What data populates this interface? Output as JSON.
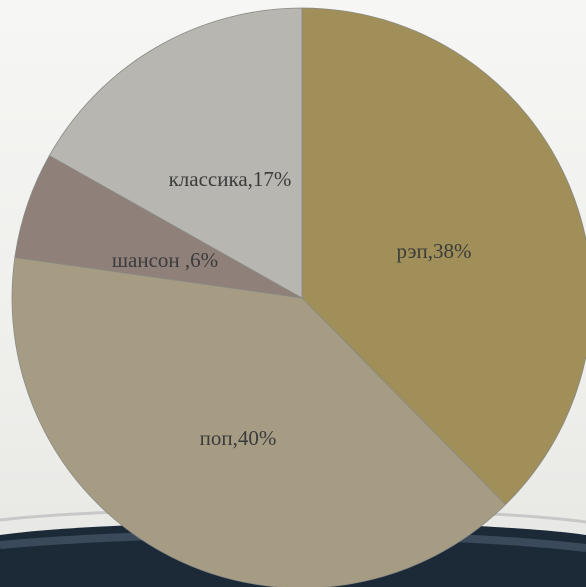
{
  "chart_data": {
    "type": "pie",
    "slices": [
      {
        "label": "рэп,38%",
        "value": 38,
        "color": "#a08f58"
      },
      {
        "label": "поп,40%",
        "value": 40,
        "color": "#a69c84"
      },
      {
        "label": "шансон ,6%",
        "value": 6,
        "color": "#8f817a"
      },
      {
        "label": "классика,17%",
        "value": 17,
        "color": "#b7b6b0"
      }
    ],
    "start": "12 o'clock",
    "direction": "clockwise",
    "legend": "none"
  }
}
